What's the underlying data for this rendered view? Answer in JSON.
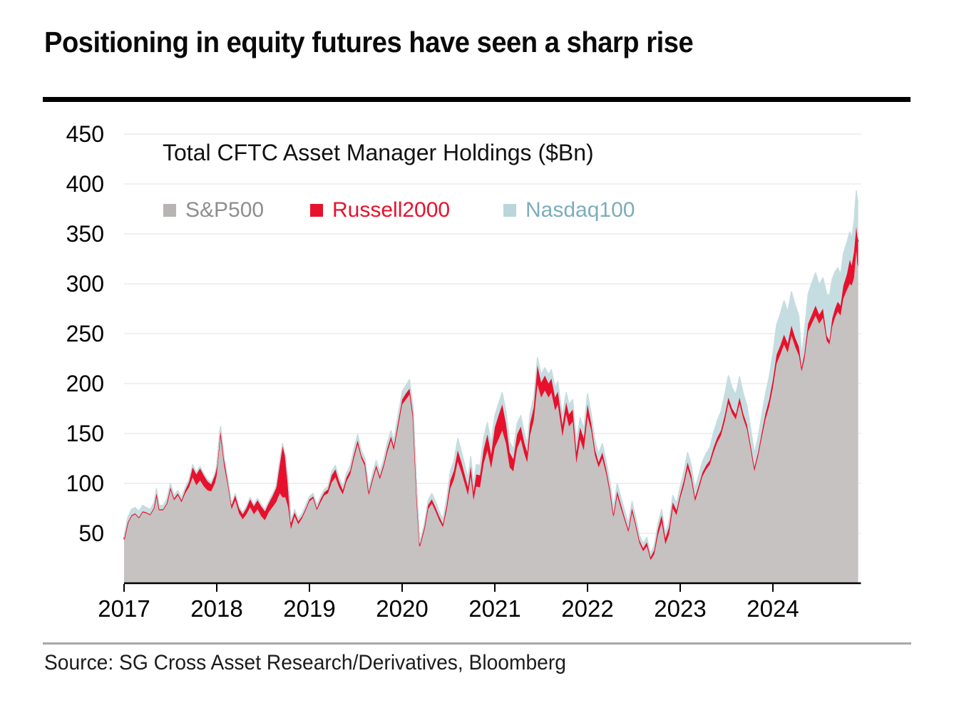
{
  "header": {
    "title": "Positioning in equity futures have seen a sharp rise"
  },
  "chart": {
    "subtitle": "Total CFTC Asset Manager Holdings ($Bn)",
    "legend": [
      {
        "label": "S&P500",
        "swatch_color": "#b7b4b3",
        "text_color": "#8e8e8e"
      },
      {
        "label": "Russell2000",
        "swatch_color": "#e8112d",
        "text_color": "#e8112d"
      },
      {
        "label": "Nasdaq100",
        "swatch_color": "#b9d6da",
        "text_color": "#7cadbb"
      }
    ]
  },
  "footer": {
    "source": "Source: SG Cross Asset Research/Derivatives, Bloomberg"
  },
  "colors": {
    "sp500_area": "#c5c2c1",
    "russell_area": "#e8112d",
    "nasdaq_area": "#c5dde0",
    "gridline": "#ececec",
    "axis": "#000000"
  },
  "chart_data": {
    "type": "area",
    "stacked": true,
    "title": "Total CFTC Asset Manager Holdings ($Bn)",
    "xlabel": "",
    "ylabel": "",
    "x_unit": "decimal_year",
    "xlim": [
      2017,
      2024.95
    ],
    "ylim": [
      0,
      460
    ],
    "grid": true,
    "legend_position": "top-left",
    "x_ticks": [
      2017,
      2018,
      2019,
      2020,
      2021,
      2022,
      2023,
      2024
    ],
    "y_ticks": [
      50,
      100,
      150,
      200,
      250,
      300,
      350,
      400,
      450
    ],
    "series": [
      {
        "name": "S&P500",
        "color": "#c5c2c1"
      },
      {
        "name": "Russell2000",
        "color": "#e8112d"
      },
      {
        "name": "Nasdaq100",
        "color": "#c5dde0"
      }
    ],
    "stacking_note": "rows are [year, S&P500, Russell2000, Nasdaq100] stacked contributions in $Bn; total = sum of the three",
    "columns": [
      "year",
      "S&P500",
      "Russell2000",
      "Nasdaq100"
    ],
    "rows": [
      [
        2017.0,
        43,
        1,
        4
      ],
      [
        2017.04,
        60,
        1,
        5
      ],
      [
        2017.08,
        67,
        1,
        6
      ],
      [
        2017.12,
        69,
        1,
        6
      ],
      [
        2017.16,
        65,
        1,
        6
      ],
      [
        2017.2,
        71,
        1,
        6
      ],
      [
        2017.24,
        70,
        1,
        5
      ],
      [
        2017.28,
        68,
        1,
        5
      ],
      [
        2017.32,
        74,
        1,
        5
      ],
      [
        2017.35,
        89,
        1,
        5
      ],
      [
        2017.38,
        73,
        1,
        4
      ],
      [
        2017.42,
        73,
        1,
        4
      ],
      [
        2017.46,
        79,
        1,
        4
      ],
      [
        2017.5,
        94,
        2,
        4
      ],
      [
        2017.54,
        83,
        2,
        3
      ],
      [
        2017.58,
        88,
        2,
        3
      ],
      [
        2017.62,
        81,
        2,
        3
      ],
      [
        2017.66,
        90,
        3,
        3
      ],
      [
        2017.7,
        96,
        5,
        3
      ],
      [
        2017.74,
        106,
        10,
        3
      ],
      [
        2017.78,
        98,
        11,
        2
      ],
      [
        2017.82,
        103,
        12,
        2
      ],
      [
        2017.86,
        97,
        11,
        2
      ],
      [
        2017.9,
        93,
        9,
        2
      ],
      [
        2017.94,
        92,
        7,
        2
      ],
      [
        2017.98,
        100,
        8,
        2
      ],
      [
        2018.0,
        108,
        8,
        2
      ],
      [
        2018.04,
        146,
        9,
        2
      ],
      [
        2018.08,
        117,
        7,
        2
      ],
      [
        2018.12,
        97,
        5,
        2
      ],
      [
        2018.16,
        74,
        4,
        2
      ],
      [
        2018.2,
        83,
        5,
        2
      ],
      [
        2018.24,
        70,
        5,
        2
      ],
      [
        2018.28,
        64,
        5,
        2
      ],
      [
        2018.32,
        69,
        6,
        2
      ],
      [
        2018.36,
        76,
        8,
        2
      ],
      [
        2018.4,
        69,
        8,
        2
      ],
      [
        2018.44,
        74,
        9,
        2
      ],
      [
        2018.48,
        67,
        10,
        2
      ],
      [
        2018.52,
        63,
        9,
        2
      ],
      [
        2018.56,
        71,
        9,
        2
      ],
      [
        2018.6,
        76,
        11,
        2
      ],
      [
        2018.64,
        81,
        14,
        2
      ],
      [
        2018.68,
        90,
        30,
        2
      ],
      [
        2018.71,
        86,
        52,
        2
      ],
      [
        2018.74,
        86,
        40,
        2
      ],
      [
        2018.77,
        76,
        22,
        2
      ],
      [
        2018.8,
        54,
        6,
        2
      ],
      [
        2018.84,
        67,
        4,
        3
      ],
      [
        2018.88,
        59,
        3,
        3
      ],
      [
        2018.92,
        65,
        2,
        3
      ],
      [
        2018.96,
        73,
        2,
        3
      ],
      [
        2019.0,
        82,
        2,
        3
      ],
      [
        2019.04,
        85,
        2,
        3
      ],
      [
        2019.08,
        73,
        2,
        3
      ],
      [
        2019.12,
        81,
        3,
        3
      ],
      [
        2019.16,
        88,
        3,
        3
      ],
      [
        2019.2,
        90,
        4,
        3
      ],
      [
        2019.24,
        101,
        7,
        4
      ],
      [
        2019.28,
        106,
        8,
        4
      ],
      [
        2019.32,
        96,
        6,
        4
      ],
      [
        2019.36,
        89,
        4,
        4
      ],
      [
        2019.4,
        102,
        4,
        4
      ],
      [
        2019.44,
        109,
        4,
        5
      ],
      [
        2019.48,
        125,
        4,
        6
      ],
      [
        2019.52,
        139,
        4,
        6
      ],
      [
        2019.56,
        125,
        3,
        5
      ],
      [
        2019.6,
        117,
        3,
        5
      ],
      [
        2019.64,
        88,
        3,
        5
      ],
      [
        2019.68,
        102,
        3,
        5
      ],
      [
        2019.72,
        115,
        3,
        5
      ],
      [
        2019.76,
        104,
        3,
        5
      ],
      [
        2019.8,
        116,
        3,
        5
      ],
      [
        2019.84,
        131,
        4,
        6
      ],
      [
        2019.88,
        143,
        4,
        6
      ],
      [
        2019.91,
        133,
        4,
        6
      ],
      [
        2019.95,
        153,
        5,
        7
      ],
      [
        2020.0,
        179,
        5,
        8
      ],
      [
        2020.04,
        184,
        6,
        8
      ],
      [
        2020.08,
        189,
        6,
        9
      ],
      [
        2020.12,
        162,
        5,
        8
      ],
      [
        2020.16,
        82,
        3,
        5
      ],
      [
        2020.19,
        36,
        2,
        3
      ],
      [
        2020.24,
        53,
        3,
        4
      ],
      [
        2020.28,
        74,
        4,
        5
      ],
      [
        2020.32,
        80,
        4,
        6
      ],
      [
        2020.36,
        72,
        4,
        6
      ],
      [
        2020.4,
        63,
        4,
        5
      ],
      [
        2020.44,
        56,
        3,
        5
      ],
      [
        2020.48,
        73,
        5,
        7
      ],
      [
        2020.52,
        95,
        8,
        9
      ],
      [
        2020.56,
        104,
        9,
        10
      ],
      [
        2020.6,
        122,
        11,
        12
      ],
      [
        2020.64,
        111,
        10,
        11
      ],
      [
        2020.68,
        98,
        9,
        10
      ],
      [
        2020.71,
        88,
        8,
        9
      ],
      [
        2020.74,
        107,
        10,
        10
      ],
      [
        2020.77,
        83,
        8,
        9
      ],
      [
        2020.8,
        97,
        12,
        10
      ],
      [
        2020.84,
        96,
        12,
        10
      ],
      [
        2020.88,
        120,
        14,
        12
      ],
      [
        2020.92,
        133,
        16,
        12
      ],
      [
        2020.96,
        115,
        14,
        11
      ],
      [
        2021.0,
        136,
        20,
        12
      ],
      [
        2021.04,
        144,
        24,
        12
      ],
      [
        2021.08,
        153,
        26,
        12
      ],
      [
        2021.12,
        140,
        20,
        12
      ],
      [
        2021.16,
        116,
        15,
        11
      ],
      [
        2021.2,
        112,
        12,
        10
      ],
      [
        2021.24,
        135,
        14,
        11
      ],
      [
        2021.28,
        144,
        13,
        11
      ],
      [
        2021.32,
        129,
        11,
        10
      ],
      [
        2021.35,
        121,
        10,
        9
      ],
      [
        2021.38,
        148,
        12,
        10
      ],
      [
        2021.42,
        163,
        13,
        10
      ],
      [
        2021.46,
        199,
        19,
        8
      ],
      [
        2021.5,
        186,
        15,
        8
      ],
      [
        2021.54,
        193,
        15,
        8
      ],
      [
        2021.58,
        186,
        14,
        9
      ],
      [
        2021.61,
        191,
        14,
        9
      ],
      [
        2021.65,
        173,
        13,
        10
      ],
      [
        2021.68,
        179,
        13,
        10
      ],
      [
        2021.73,
        147,
        11,
        10
      ],
      [
        2021.77,
        169,
        12,
        10
      ],
      [
        2021.8,
        157,
        12,
        10
      ],
      [
        2021.84,
        162,
        12,
        10
      ],
      [
        2021.88,
        120,
        11,
        10
      ],
      [
        2021.92,
        144,
        12,
        10
      ],
      [
        2021.96,
        133,
        12,
        10
      ],
      [
        2022.0,
        167,
        12,
        11
      ],
      [
        2022.04,
        153,
        7,
        10
      ],
      [
        2022.08,
        128,
        6,
        9
      ],
      [
        2022.12,
        116,
        5,
        9
      ],
      [
        2022.16,
        125,
        6,
        9
      ],
      [
        2022.2,
        110,
        5,
        8
      ],
      [
        2022.24,
        91,
        4,
        8
      ],
      [
        2022.28,
        66,
        3,
        7
      ],
      [
        2022.32,
        88,
        4,
        8
      ],
      [
        2022.36,
        75,
        4,
        7
      ],
      [
        2022.4,
        63,
        3,
        7
      ],
      [
        2022.44,
        51,
        3,
        6
      ],
      [
        2022.48,
        71,
        4,
        7
      ],
      [
        2022.52,
        57,
        3,
        6
      ],
      [
        2022.56,
        40,
        3,
        5
      ],
      [
        2022.6,
        32,
        3,
        5
      ],
      [
        2022.64,
        37,
        4,
        5
      ],
      [
        2022.68,
        23,
        3,
        4
      ],
      [
        2022.72,
        29,
        4,
        5
      ],
      [
        2022.76,
        48,
        6,
        6
      ],
      [
        2022.8,
        61,
        7,
        6
      ],
      [
        2022.84,
        39,
        6,
        5
      ],
      [
        2022.88,
        49,
        7,
        6
      ],
      [
        2022.92,
        75,
        6,
        7
      ],
      [
        2022.96,
        68,
        5,
        7
      ],
      [
        2023.0,
        85,
        4,
        8
      ],
      [
        2023.04,
        98,
        5,
        9
      ],
      [
        2023.08,
        115,
        6,
        10
      ],
      [
        2023.12,
        103,
        5,
        10
      ],
      [
        2023.16,
        82,
        4,
        9
      ],
      [
        2023.2,
        94,
        4,
        10
      ],
      [
        2023.24,
        107,
        4,
        11
      ],
      [
        2023.28,
        114,
        4,
        12
      ],
      [
        2023.32,
        119,
        4,
        13
      ],
      [
        2023.36,
        131,
        5,
        15
      ],
      [
        2023.4,
        141,
        5,
        17
      ],
      [
        2023.44,
        148,
        5,
        19
      ],
      [
        2023.48,
        162,
        6,
        21
      ],
      [
        2023.52,
        180,
        6,
        22
      ],
      [
        2023.56,
        170,
        5,
        21
      ],
      [
        2023.6,
        164,
        5,
        20
      ],
      [
        2023.64,
        180,
        6,
        21
      ],
      [
        2023.68,
        165,
        5,
        20
      ],
      [
        2023.72,
        154,
        5,
        19
      ],
      [
        2023.76,
        134,
        4,
        17
      ],
      [
        2023.8,
        112,
        4,
        14
      ],
      [
        2023.84,
        127,
        4,
        15
      ],
      [
        2023.88,
        146,
        5,
        17
      ],
      [
        2023.92,
        164,
        6,
        20
      ],
      [
        2023.96,
        177,
        7,
        23
      ],
      [
        2024.0,
        196,
        8,
        26
      ],
      [
        2024.04,
        220,
        9,
        30
      ],
      [
        2024.08,
        229,
        9,
        32
      ],
      [
        2024.12,
        239,
        10,
        34
      ],
      [
        2024.16,
        231,
        9,
        32
      ],
      [
        2024.2,
        248,
        10,
        34
      ],
      [
        2024.24,
        237,
        9,
        33
      ],
      [
        2024.28,
        228,
        9,
        31
      ],
      [
        2024.31,
        212,
        4,
        11
      ],
      [
        2024.34,
        224,
        6,
        22
      ],
      [
        2024.38,
        252,
        8,
        30
      ],
      [
        2024.42,
        260,
        9,
        32
      ],
      [
        2024.46,
        268,
        10,
        33
      ],
      [
        2024.5,
        260,
        9,
        30
      ],
      [
        2024.54,
        266,
        9,
        31
      ],
      [
        2024.58,
        243,
        5,
        42
      ],
      [
        2024.61,
        239,
        4,
        45
      ],
      [
        2024.64,
        257,
        8,
        40
      ],
      [
        2024.67,
        266,
        9,
        37
      ],
      [
        2024.7,
        272,
        10,
        34
      ],
      [
        2024.73,
        268,
        10,
        31
      ],
      [
        2024.76,
        285,
        13,
        32
      ],
      [
        2024.8,
        294,
        16,
        32
      ],
      [
        2024.83,
        300,
        24,
        28
      ],
      [
        2024.85,
        298,
        20,
        27
      ],
      [
        2024.875,
        306,
        26,
        30
      ],
      [
        2024.9,
        333,
        24,
        36
      ],
      [
        2024.91,
        320,
        28,
        38
      ],
      [
        2024.92,
        317,
        25,
        39
      ]
    ]
  }
}
